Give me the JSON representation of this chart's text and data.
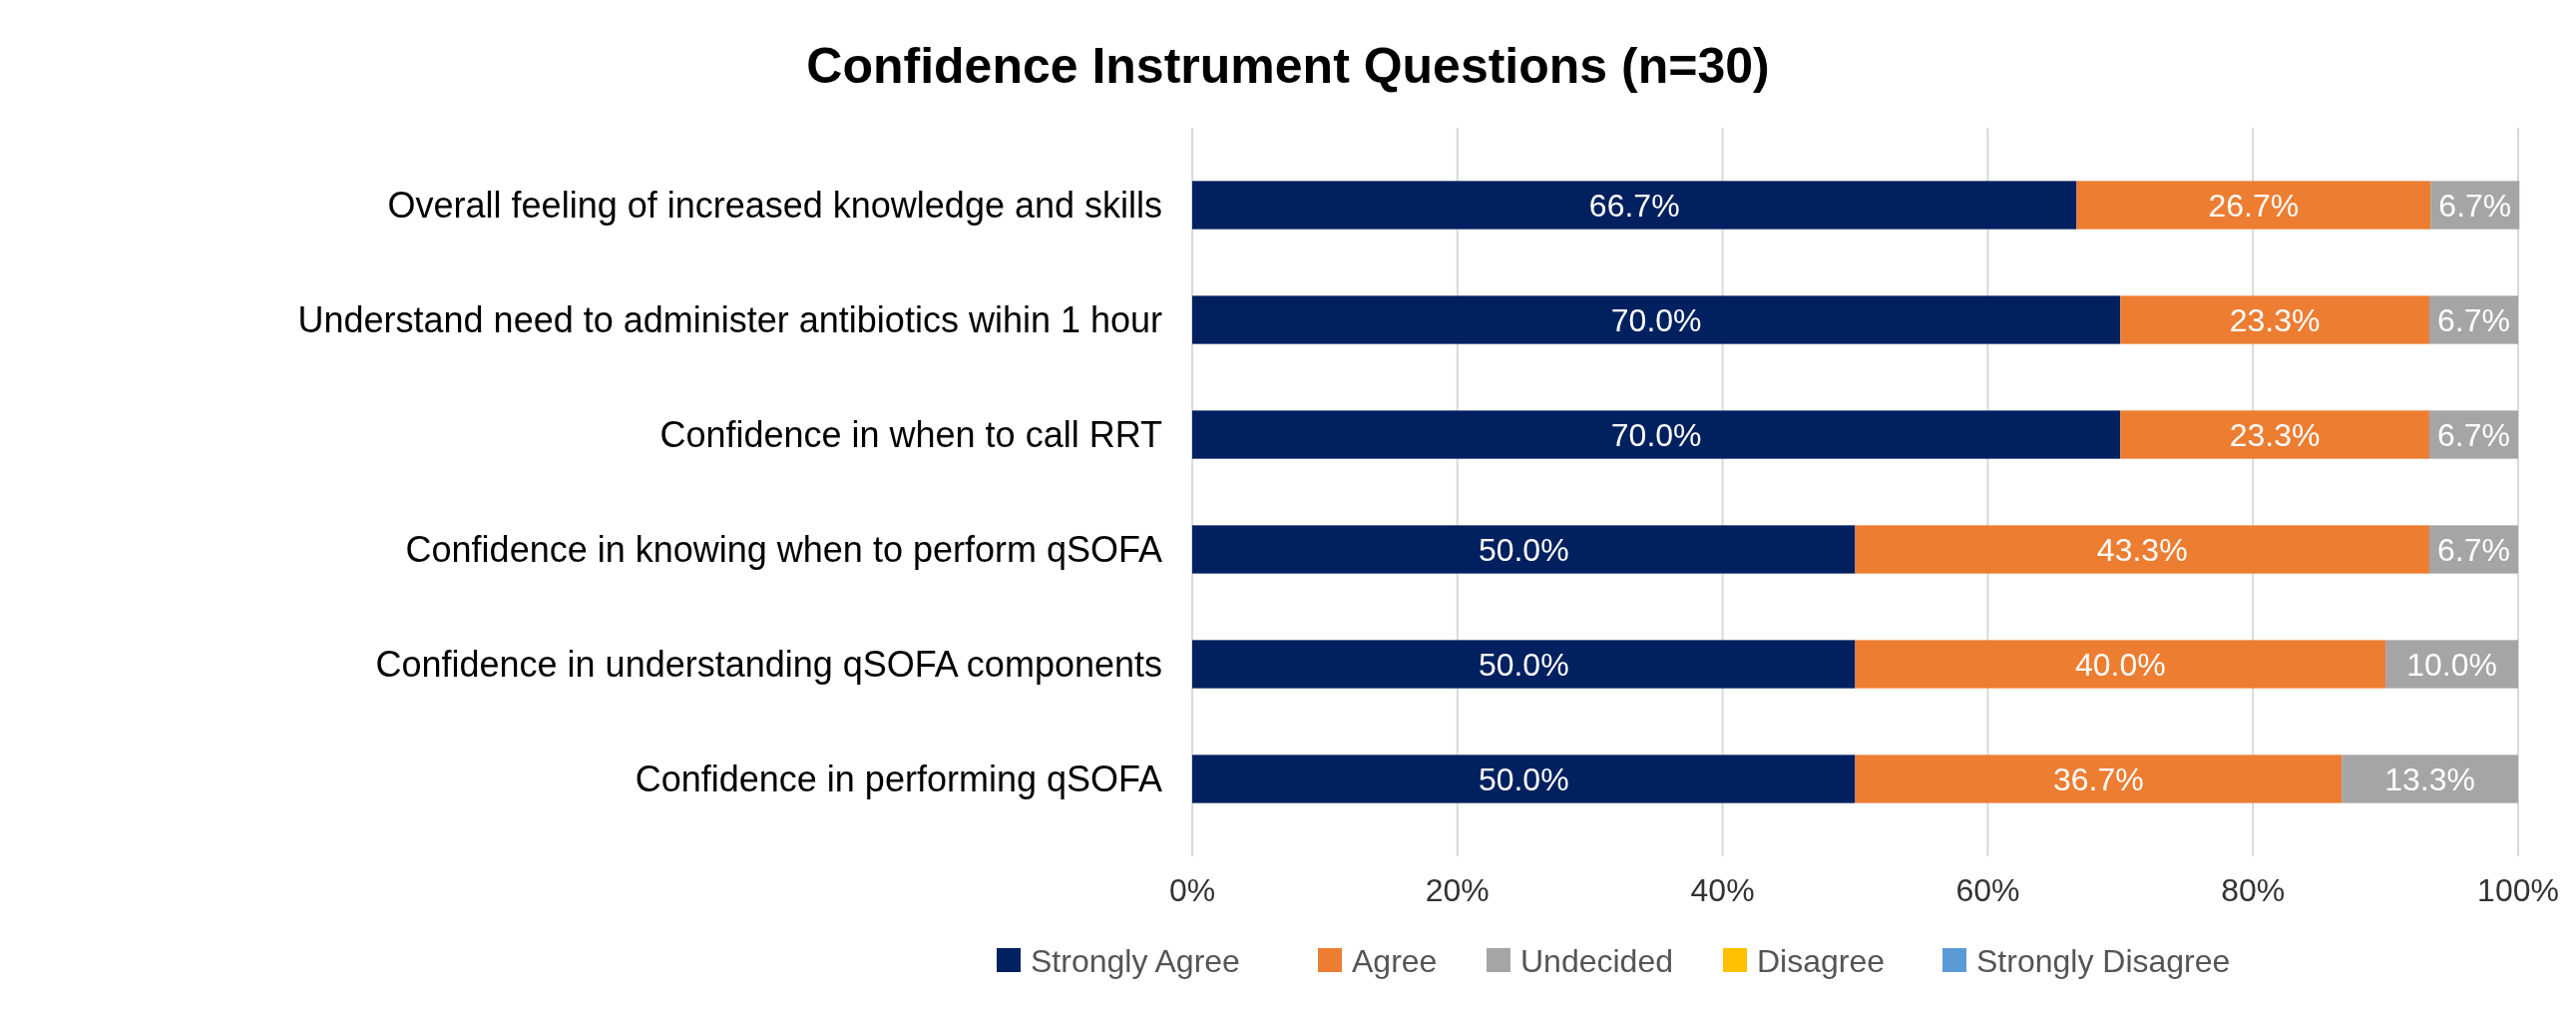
{
  "chart_data": {
    "type": "bar",
    "orientation": "horizontal",
    "stacked": true,
    "title": "Confidence Instrument Questions (n=30)",
    "categories": [
      "Overall feeling of increased knowledge and skills",
      "Understand need to administer antibiotics wihin 1 hour",
      "Confidence in when to call RRT",
      "Confidence in knowing when to perform qSOFA",
      "Confidence in understanding qSOFA components",
      "Confidence in performing qSOFA"
    ],
    "series": [
      {
        "name": "Strongly Agree",
        "color": "#002060",
        "values": [
          66.7,
          70.0,
          70.0,
          50.0,
          50.0,
          50.0
        ],
        "value_labels": [
          "66.7%",
          "70.0%",
          "70.0%",
          "50.0%",
          "50.0%",
          "50.0%"
        ]
      },
      {
        "name": "Agree",
        "color": "#ed7d31",
        "values": [
          26.7,
          23.3,
          23.3,
          43.3,
          40.0,
          36.7
        ],
        "value_labels": [
          "26.7%",
          "23.3%",
          "23.3%",
          "43.3%",
          "40.0%",
          "36.7%"
        ]
      },
      {
        "name": "Undecided",
        "color": "#a5a5a5",
        "values": [
          6.7,
          6.7,
          6.7,
          6.7,
          10.0,
          13.3
        ],
        "value_labels": [
          "6.7%",
          "6.7%",
          "6.7%",
          "6.7%",
          "10.0%",
          "13.3%"
        ]
      },
      {
        "name": "Disagree",
        "color": "#ffc000",
        "values": [
          0,
          0,
          0,
          0,
          0,
          0
        ],
        "value_labels": [
          null,
          null,
          null,
          null,
          null,
          null
        ]
      },
      {
        "name": "Strongly Disagree",
        "color": "#5b9bd5",
        "values": [
          0,
          0,
          0,
          0,
          0,
          0
        ],
        "value_labels": [
          null,
          null,
          null,
          null,
          null,
          null
        ]
      }
    ],
    "xlim": [
      0,
      100
    ],
    "xticks": [
      {
        "value": 0,
        "label": "0%"
      },
      {
        "value": 20,
        "label": "20%"
      },
      {
        "value": 40,
        "label": "40%"
      },
      {
        "value": 60,
        "label": "60%"
      },
      {
        "value": 80,
        "label": "80%"
      },
      {
        "value": 100,
        "label": "100%"
      }
    ],
    "grid": "x",
    "legend": "bottom"
  }
}
